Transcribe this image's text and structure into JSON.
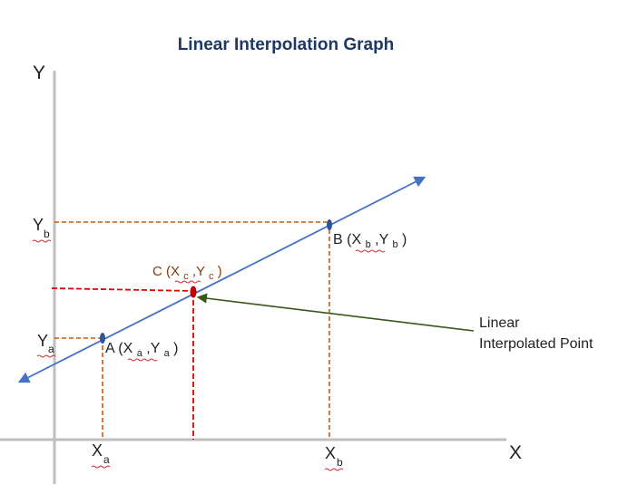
{
  "title": "Linear Interpolation Graph",
  "axes": {
    "y_label": "Y",
    "x_label": "X"
  },
  "ticks": {
    "yb": {
      "main": "Y",
      "sub": "b"
    },
    "ya": {
      "main": "Y",
      "sub": "a"
    },
    "xa": {
      "main": "X",
      "sub": "a"
    },
    "xb": {
      "main": "X",
      "sub": "b"
    }
  },
  "points": {
    "a": {
      "name": "A",
      "sub1": "a",
      "sub2": "a"
    },
    "b": {
      "name": "B",
      "sub1": "b",
      "sub2": "b"
    },
    "c": {
      "name": "C",
      "sub1": "c",
      "sub2": "c"
    }
  },
  "callout": {
    "line1": "Linear",
    "line2": "Interpolated Point"
  },
  "colors": {
    "axis": "#bfbfbf",
    "line": "#4472c4",
    "guide_brown": "#c55a11",
    "guide_red": "#e00000",
    "point_blue": "#2f5597",
    "point_red": "#c00000",
    "arrow_green": "#38571a",
    "title": "#1f3864"
  }
}
